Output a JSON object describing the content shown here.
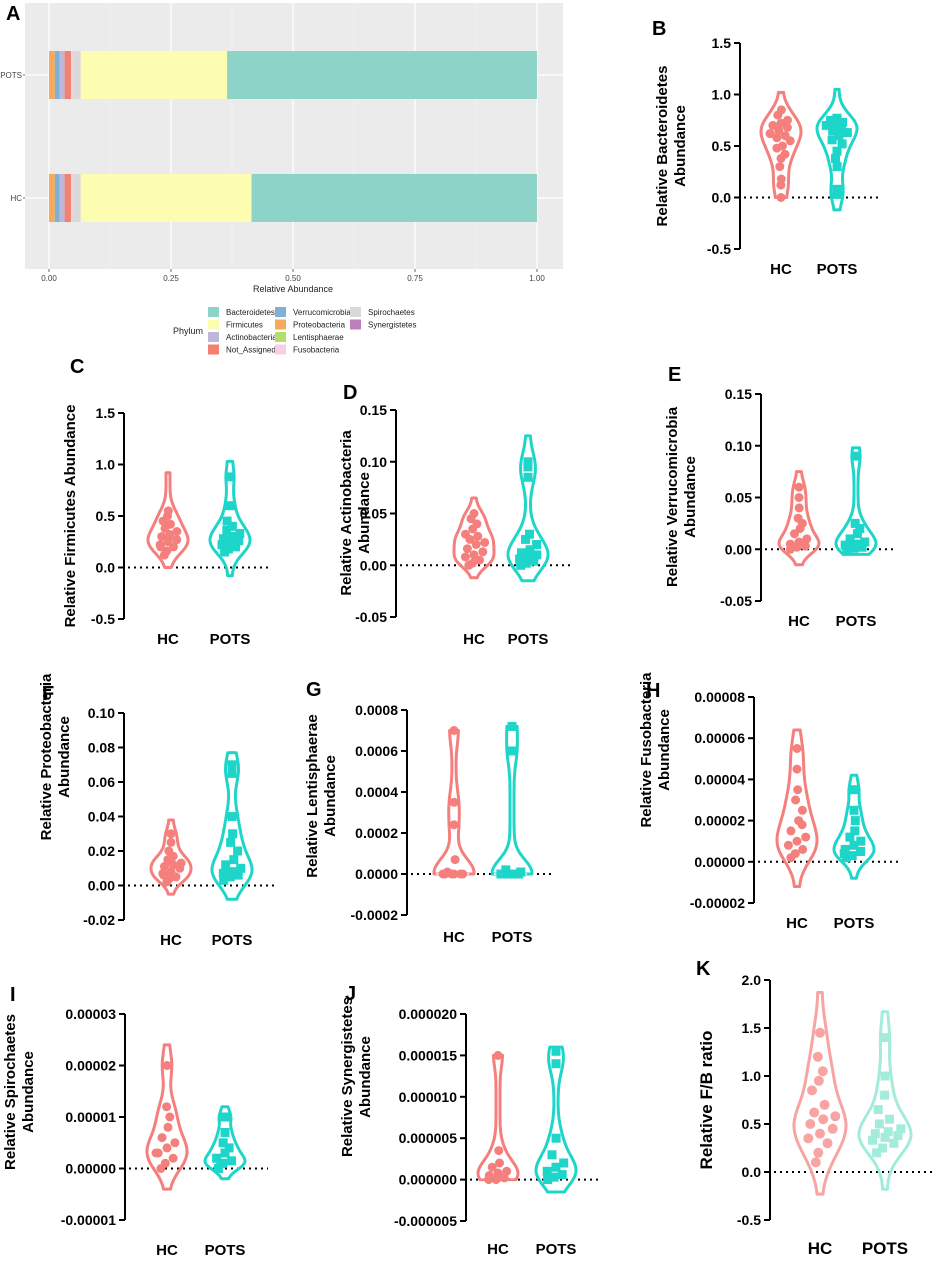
{
  "chart_data": [
    {
      "panel": "A",
      "type": "bar",
      "orientation": "horizontal",
      "stacked": true,
      "categories": [
        "POTS",
        "HC"
      ],
      "xlabel": "Relative Abundance",
      "xticks": [
        "0.00",
        "0.25",
        "0.50",
        "0.75",
        "1.00"
      ],
      "xlim": [
        0,
        1
      ],
      "legend_title": "Phylum",
      "legend_position": "bottom",
      "series": [
        {
          "name": "Proteobacteria",
          "color": "#f6ab5c",
          "values": [
            0.012,
            0.012
          ]
        },
        {
          "name": "Verrucomicrobia",
          "color": "#7fb0d5",
          "values": [
            0.01,
            0.01
          ]
        },
        {
          "name": "Actinobacteria",
          "color": "#bcb8da",
          "values": [
            0.01,
            0.01
          ]
        },
        {
          "name": "Not_Assigned",
          "color": "#f4806f",
          "values": [
            0.013,
            0.013
          ]
        },
        {
          "name": "Fusobacteria",
          "color": "#f9cde4",
          "values": [
            0.003,
            0.003
          ]
        },
        {
          "name": "Spirochaetes",
          "color": "#d9d9d9",
          "values": [
            0.017,
            0.017
          ]
        },
        {
          "name": "Firmicutes",
          "color": "#fdfdb2",
          "values": [
            0.3,
            0.35
          ]
        },
        {
          "name": "Lentisphaerae",
          "color": "#b2de69",
          "values": [
            0,
            0
          ]
        },
        {
          "name": "Synergistetes",
          "color": "#bb80bd",
          "values": [
            0,
            0
          ]
        },
        {
          "name": "Bacteroidetes",
          "color": "#8dd3c8",
          "values": [
            0.635,
            0.585
          ]
        }
      ],
      "legend": [
        {
          "name": "Bacteroidetes",
          "color": "#8dd3c8"
        },
        {
          "name": "Firmicutes",
          "color": "#fdfdb2"
        },
        {
          "name": "Actinobacteria",
          "color": "#bcb8da"
        },
        {
          "name": "Not_Assigned",
          "color": "#f4806f"
        },
        {
          "name": "Verrucomicrobia",
          "color": "#7fb0d5"
        },
        {
          "name": "Proteobacteria",
          "color": "#f6ab5c"
        },
        {
          "name": "Lentisphaerae",
          "color": "#b2de69"
        },
        {
          "name": "Fusobacteria",
          "color": "#f9cde4"
        },
        {
          "name": "Spirochaetes",
          "color": "#d9d9d9"
        },
        {
          "name": "Synergistetes",
          "color": "#bb80bd"
        }
      ]
    },
    {
      "panel": "B",
      "type": "violin",
      "ylabel": [
        "Relative Bacteroidetes",
        "Abundance"
      ],
      "ylim": [
        -0.5,
        1.5
      ],
      "yticks": [
        "-0.5",
        "0.0",
        "0.5",
        "1.0",
        "1.5"
      ],
      "categories": [
        "HC",
        "POTS"
      ],
      "colors": [
        "#f47f7c",
        "#1dd6c9"
      ],
      "groups": [
        {
          "name": "HC",
          "min": 0.0,
          "max": 1.02,
          "values": [
            0.0,
            0.12,
            0.18,
            0.3,
            0.38,
            0.42,
            0.48,
            0.5,
            0.55,
            0.58,
            0.6,
            0.62,
            0.65,
            0.68,
            0.7,
            0.72,
            0.75,
            0.8,
            0.85
          ]
        },
        {
          "name": "POTS",
          "min": -0.12,
          "max": 1.05,
          "values": [
            0.03,
            0.08,
            0.3,
            0.38,
            0.45,
            0.52,
            0.56,
            0.6,
            0.63,
            0.65,
            0.67,
            0.7,
            0.72,
            0.73,
            0.75,
            0.77
          ]
        }
      ]
    },
    {
      "panel": "C",
      "type": "violin",
      "ylabel": [
        "Relative Firmicutes Abundance"
      ],
      "ylim": [
        -0.5,
        1.5
      ],
      "yticks": [
        "-0.5",
        "0.0",
        "0.5",
        "1.0",
        "1.5"
      ],
      "categories": [
        "HC",
        "POTS"
      ],
      "colors": [
        "#f47f7c",
        "#1dd6c9"
      ],
      "groups": [
        {
          "name": "HC",
          "min": 0.0,
          "max": 0.92,
          "values": [
            0.12,
            0.16,
            0.2,
            0.22,
            0.25,
            0.27,
            0.3,
            0.32,
            0.35,
            0.38,
            0.42,
            0.45,
            0.5,
            0.55,
            0.2,
            0.28
          ]
        },
        {
          "name": "POTS",
          "min": -0.08,
          "max": 1.03,
          "values": [
            0.15,
            0.18,
            0.2,
            0.22,
            0.24,
            0.26,
            0.28,
            0.3,
            0.33,
            0.36,
            0.4,
            0.45,
            0.88,
            0.6
          ]
        }
      ]
    },
    {
      "panel": "D",
      "type": "violin",
      "ylabel": [
        "Relative Actinobacteria",
        "Abundance"
      ],
      "ylim": [
        -0.05,
        0.15
      ],
      "yticks": [
        "-0.05",
        "0.00",
        "0.05",
        "0.10",
        "0.15"
      ],
      "categories": [
        "HC",
        "POTS"
      ],
      "colors": [
        "#f47f7c",
        "#1dd6c9"
      ],
      "groups": [
        {
          "name": "HC",
          "min": -0.012,
          "max": 0.065,
          "values": [
            0.0,
            0.002,
            0.005,
            0.008,
            0.01,
            0.013,
            0.016,
            0.02,
            0.022,
            0.025,
            0.028,
            0.03,
            0.035,
            0.04,
            0.045,
            0.05
          ]
        },
        {
          "name": "POTS",
          "min": -0.015,
          "max": 0.125,
          "values": [
            0.0,
            0.002,
            0.004,
            0.006,
            0.008,
            0.01,
            0.012,
            0.015,
            0.02,
            0.025,
            0.03,
            0.085,
            0.095,
            0.1
          ]
        }
      ]
    },
    {
      "panel": "E",
      "type": "violin",
      "ylabel": [
        "Relative Verrucomicrobia",
        "Abundance"
      ],
      "ylim": [
        -0.05,
        0.15
      ],
      "yticks": [
        "-0.05",
        "0.00",
        "0.05",
        "0.10",
        "0.15"
      ],
      "categories": [
        "HC",
        "POTS"
      ],
      "colors": [
        "#f47f7c",
        "#1dd6c9"
      ],
      "groups": [
        {
          "name": "HC",
          "min": -0.015,
          "max": 0.075,
          "values": [
            0.0,
            0.002,
            0.003,
            0.005,
            0.007,
            0.01,
            0.015,
            0.02,
            0.025,
            0.03,
            0.04,
            0.05,
            0.06,
            0.003
          ]
        },
        {
          "name": "POTS",
          "min": -0.005,
          "max": 0.098,
          "values": [
            0.0,
            0.001,
            0.002,
            0.003,
            0.005,
            0.007,
            0.01,
            0.015,
            0.02,
            0.025,
            0.09,
            0.004
          ]
        }
      ]
    },
    {
      "panel": "F",
      "type": "violin",
      "ylabel": [
        "Relative Proteobacteria",
        "Abundance"
      ],
      "ylim": [
        -0.02,
        0.1
      ],
      "yticks": [
        "-0.02",
        "0.00",
        "0.02",
        "0.04",
        "0.06",
        "0.08",
        "0.10"
      ],
      "categories": [
        "HC",
        "POTS"
      ],
      "colors": [
        "#f47f7c",
        "#1dd6c9"
      ],
      "groups": [
        {
          "name": "HC",
          "min": -0.005,
          "max": 0.038,
          "values": [
            0.002,
            0.004,
            0.005,
            0.007,
            0.008,
            0.01,
            0.011,
            0.012,
            0.013,
            0.015,
            0.017,
            0.02,
            0.025,
            0.03,
            0.006,
            0.014
          ]
        },
        {
          "name": "POTS",
          "min": -0.008,
          "max": 0.077,
          "values": [
            0.003,
            0.005,
            0.006,
            0.007,
            0.008,
            0.01,
            0.012,
            0.015,
            0.02,
            0.025,
            0.03,
            0.04,
            0.065,
            0.07
          ]
        }
      ]
    },
    {
      "panel": "G",
      "type": "violin",
      "ylabel": [
        "Relative Lentisphaerae",
        "Abundance"
      ],
      "ylim": [
        -0.0002,
        0.0008
      ],
      "yticks": [
        "-0.0002",
        "0.0000",
        "0.0002",
        "0.0004",
        "0.0006",
        "0.0008"
      ],
      "categories": [
        "HC",
        "POTS"
      ],
      "colors": [
        "#f47f7c",
        "#1dd6c9"
      ],
      "groups": [
        {
          "name": "HC",
          "min": 0.0,
          "max": 0.0007,
          "values": [
            0.0,
            0.0,
            0.0,
            0.0,
            0.0,
            0.0,
            1e-05,
            7e-05,
            0.00024,
            0.00035,
            0.0007
          ]
        },
        {
          "name": "POTS",
          "min": 0.0,
          "max": 0.00072,
          "values": [
            0.0,
            0.0,
            0.0,
            0.0,
            0.0,
            1e-05,
            2e-05,
            0.0006,
            0.00072
          ]
        }
      ]
    },
    {
      "panel": "H",
      "type": "violin",
      "ylabel": [
        "Relative Fusobacteria",
        "Abundance"
      ],
      "ylim": [
        -2e-05,
        8e-05
      ],
      "yticks": [
        "-0.00002",
        "0.00000",
        "0.00002",
        "0.00004",
        "0.00006",
        "0.00008"
      ],
      "categories": [
        "HC",
        "POTS"
      ],
      "colors": [
        "#f47f7c",
        "#1dd6c9"
      ],
      "groups": [
        {
          "name": "HC",
          "min": -1.2e-05,
          "max": 6.4e-05,
          "values": [
            2e-06,
            4e-06,
            6e-06,
            8e-06,
            1e-05,
            1.2e-05,
            1.5e-05,
            2e-05,
            2.5e-05,
            3e-05,
            3.5e-05,
            4.5e-05,
            5.5e-05,
            1.8e-05
          ]
        },
        {
          "name": "POTS",
          "min": -8e-06,
          "max": 4.2e-05,
          "values": [
            2e-06,
            3e-06,
            5e-06,
            6e-06,
            8e-06,
            1e-05,
            1.2e-05,
            1.5e-05,
            2e-05,
            2.5e-05,
            3.5e-05,
            4e-06
          ]
        }
      ]
    },
    {
      "panel": "I",
      "type": "violin",
      "ylabel": [
        "Relative Spirochaetes",
        "Abundance"
      ],
      "ylim": [
        -1e-05,
        3e-05
      ],
      "yticks": [
        "-0.00001",
        "0.00000",
        "0.00001",
        "0.00002",
        "0.00003"
      ],
      "categories": [
        "HC",
        "POTS"
      ],
      "colors": [
        "#f47f7c",
        "#1dd6c9"
      ],
      "groups": [
        {
          "name": "HC",
          "min": -4e-06,
          "max": 2.4e-05,
          "values": [
            0.0,
            1e-06,
            2e-06,
            3e-06,
            4e-06,
            5e-06,
            6e-06,
            8e-06,
            1e-05,
            1.2e-05,
            2e-05,
            3e-06
          ]
        },
        {
          "name": "POTS",
          "min": -2e-06,
          "max": 1.2e-05,
          "values": [
            0.0,
            1e-06,
            1.5e-06,
            2e-06,
            3e-06,
            4e-06,
            5e-06,
            7e-06,
            1e-05,
            1e-06
          ]
        }
      ]
    },
    {
      "panel": "J",
      "type": "violin",
      "ylabel": [
        "Relative Synergistetes",
        "Abundance"
      ],
      "ylim": [
        -5e-06,
        2e-05
      ],
      "yticks": [
        "-0.000005",
        "0.000000",
        "0.000005",
        "0.000010",
        "0.000015",
        "0.000020"
      ],
      "categories": [
        "HC",
        "POTS"
      ],
      "colors": [
        "#f47f7c",
        "#1dd6c9"
      ],
      "groups": [
        {
          "name": "HC",
          "min": 0.0,
          "max": 1.5e-05,
          "values": [
            0.0,
            0.0,
            2e-07,
            5e-07,
            8e-07,
            1e-06,
            1.5e-06,
            2e-06,
            3.5e-06,
            1.5e-05
          ]
        },
        {
          "name": "POTS",
          "min": -1.5e-06,
          "max": 1.6e-05,
          "values": [
            0.0,
            3e-07,
            6e-07,
            1e-06,
            1.5e-06,
            2e-06,
            3e-06,
            5e-06,
            1.4e-05,
            1.55e-05
          ]
        }
      ]
    },
    {
      "panel": "K",
      "type": "violin",
      "ylabel": [
        "Relative F/B ratio"
      ],
      "ylim": [
        -0.5,
        2.0
      ],
      "yticks": [
        "-0.5",
        "0.0",
        "0.5",
        "1.0",
        "1.5",
        "2.0"
      ],
      "categories": [
        "HC",
        "POTS"
      ],
      "colors": [
        "#f7a4a3",
        "#a3ecdc"
      ],
      "groups": [
        {
          "name": "HC",
          "min": -0.23,
          "max": 1.87,
          "values": [
            0.1,
            0.2,
            0.3,
            0.35,
            0.4,
            0.45,
            0.5,
            0.55,
            0.58,
            0.62,
            0.7,
            0.85,
            0.95,
            1.05,
            1.2,
            1.45
          ]
        },
        {
          "name": "POTS",
          "min": -0.18,
          "max": 1.67,
          "values": [
            0.2,
            0.25,
            0.3,
            0.33,
            0.36,
            0.38,
            0.4,
            0.42,
            0.45,
            0.5,
            0.55,
            0.65,
            0.8,
            1.0,
            1.4
          ]
        }
      ]
    }
  ]
}
